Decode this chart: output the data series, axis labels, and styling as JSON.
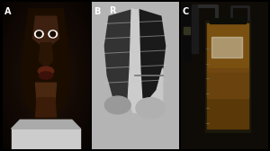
{
  "panels": [
    "A",
    "B",
    "C"
  ],
  "panel_labels": [
    "A",
    "B",
    "C"
  ],
  "label_color": "white",
  "label_fontsize": 7,
  "background_color": "black",
  "fig_width": 3.0,
  "fig_height": 1.68,
  "dpi": 100,
  "panel_A": {
    "bg": "#111111",
    "face_color": "#1a0d00",
    "highlight_color": "#3d2010",
    "clothing_color": "#cccccc"
  },
  "panel_B": {
    "bg": "#aaaaaa",
    "lung_dark": "#222222",
    "lung_light": "#dddddd",
    "fluid_color": "#888888",
    "marker": "R"
  },
  "panel_C": {
    "bg": "#111111",
    "container_color": "#8b6914",
    "fluid_dark": "#4a3000",
    "equipment_color": "#333333"
  }
}
